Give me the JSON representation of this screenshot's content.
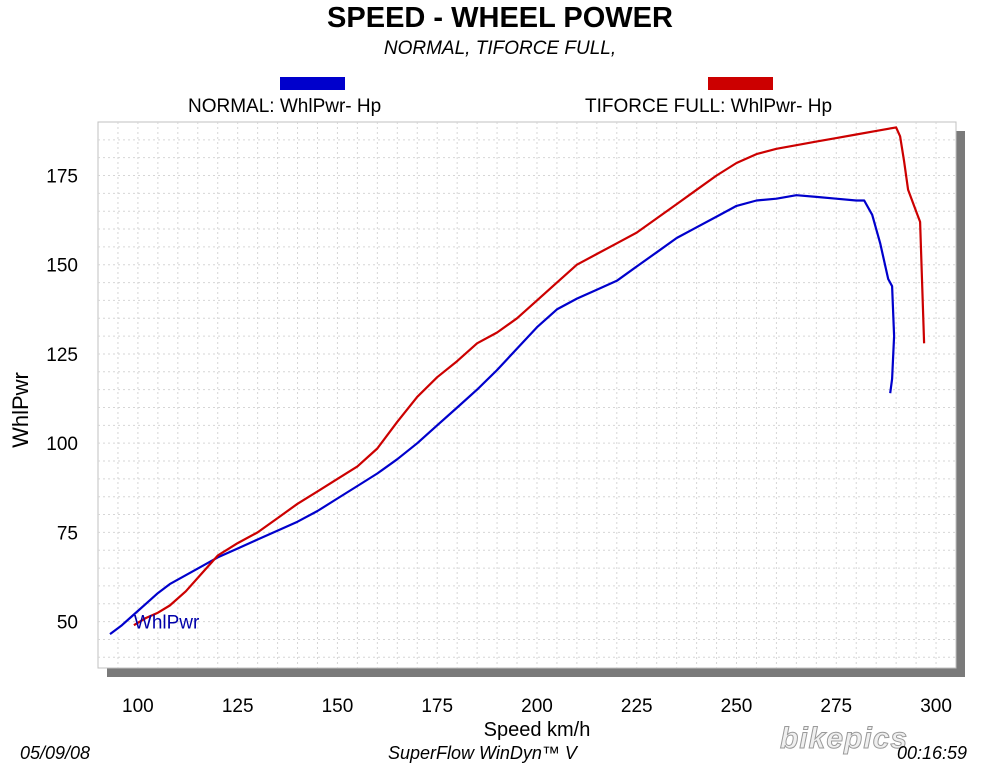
{
  "chart_data": {
    "type": "line",
    "title": "SPEED - WHEEL POWER",
    "subtitle": "NORMAL, TIFORCE FULL,",
    "xlabel": "Speed   km/h",
    "ylabel": "WhlPwr",
    "xlim": [
      90,
      305
    ],
    "ylim": [
      37,
      190
    ],
    "xticks": [
      100,
      125,
      150,
      175,
      200,
      225,
      250,
      275,
      300
    ],
    "yticks": [
      50,
      75,
      100,
      125,
      150,
      175
    ],
    "grid": true,
    "plot_annotation": "WhlPwr",
    "series": [
      {
        "name": "NORMAL: WhlPwr-  Hp",
        "color": "#0000cc",
        "points": [
          [
            93,
            46.5
          ],
          [
            96,
            49
          ],
          [
            99,
            52
          ],
          [
            102,
            55
          ],
          [
            105,
            58
          ],
          [
            108,
            60.5
          ],
          [
            112,
            63
          ],
          [
            116,
            65.5
          ],
          [
            120,
            68
          ],
          [
            125,
            70.5
          ],
          [
            130,
            73
          ],
          [
            135,
            75.5
          ],
          [
            140,
            78
          ],
          [
            145,
            81
          ],
          [
            150,
            84.5
          ],
          [
            155,
            88
          ],
          [
            160,
            91.5
          ],
          [
            165,
            95.5
          ],
          [
            170,
            100
          ],
          [
            175,
            105
          ],
          [
            180,
            110
          ],
          [
            185,
            115
          ],
          [
            190,
            120.5
          ],
          [
            195,
            126.5
          ],
          [
            200,
            132.5
          ],
          [
            205,
            137.5
          ],
          [
            210,
            140.5
          ],
          [
            215,
            143
          ],
          [
            220,
            145.5
          ],
          [
            225,
            149.5
          ],
          [
            230,
            153.5
          ],
          [
            235,
            157.5
          ],
          [
            240,
            160.5
          ],
          [
            245,
            163.5
          ],
          [
            250,
            166.5
          ],
          [
            255,
            168
          ],
          [
            260,
            168.5
          ],
          [
            265,
            169.5
          ],
          [
            270,
            169
          ],
          [
            275,
            168.5
          ],
          [
            280,
            168
          ],
          [
            282,
            168
          ],
          [
            284,
            164
          ],
          [
            286,
            156
          ],
          [
            288,
            146
          ],
          [
            289,
            144
          ],
          [
            289.5,
            130
          ],
          [
            289,
            118
          ],
          [
            288.5,
            114
          ]
        ]
      },
      {
        "name": "TIFORCE FULL: WhlPwr-  Hp",
        "color": "#cc0000",
        "points": [
          [
            99,
            49
          ],
          [
            102,
            51
          ],
          [
            105,
            52.5
          ],
          [
            108,
            54.5
          ],
          [
            112,
            58.5
          ],
          [
            116,
            63.5
          ],
          [
            120,
            68.5
          ],
          [
            125,
            72
          ],
          [
            130,
            75
          ],
          [
            135,
            79
          ],
          [
            140,
            83
          ],
          [
            145,
            86.5
          ],
          [
            150,
            90
          ],
          [
            155,
            93.5
          ],
          [
            160,
            98.5
          ],
          [
            165,
            106
          ],
          [
            170,
            113
          ],
          [
            175,
            118.5
          ],
          [
            180,
            123
          ],
          [
            185,
            128
          ],
          [
            190,
            131
          ],
          [
            195,
            135
          ],
          [
            200,
            140
          ],
          [
            205,
            145
          ],
          [
            210,
            150
          ],
          [
            215,
            153
          ],
          [
            220,
            156
          ],
          [
            225,
            159
          ],
          [
            230,
            163
          ],
          [
            235,
            167
          ],
          [
            240,
            171
          ],
          [
            245,
            175
          ],
          [
            250,
            178.5
          ],
          [
            255,
            181
          ],
          [
            260,
            182.5
          ],
          [
            265,
            183.5
          ],
          [
            270,
            184.5
          ],
          [
            275,
            185.5
          ],
          [
            280,
            186.5
          ],
          [
            285,
            187.5
          ],
          [
            290,
            188.5
          ],
          [
            291,
            186
          ],
          [
            292,
            179
          ],
          [
            293,
            171
          ],
          [
            295,
            165
          ],
          [
            296,
            162
          ],
          [
            296.5,
            145
          ],
          [
            297,
            128
          ]
        ]
      }
    ],
    "footer": {
      "date": "05/09/08",
      "software": "SuperFlow WinDyn™ V",
      "time": "00:16:59"
    },
    "watermark": "bikepics"
  }
}
